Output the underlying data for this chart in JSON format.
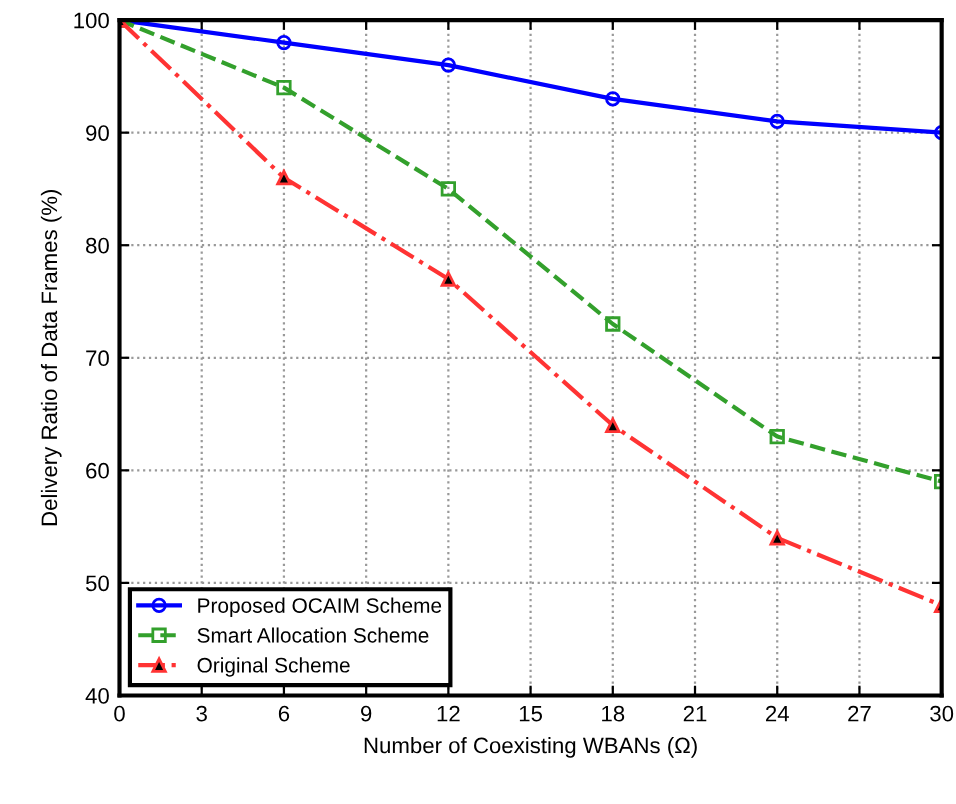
{
  "chart_data": {
    "type": "line",
    "xlabel": "Number of Coexisting WBANs (Ω)",
    "ylabel": "Delivery Ratio of Data Frames (%)",
    "x": [
      0,
      6,
      12,
      18,
      24,
      30
    ],
    "series": [
      {
        "name": "Proposed OCAIM Scheme",
        "color": "#0000ff",
        "marker": "circle",
        "line_style": "solid",
        "values": [
          100,
          98,
          96,
          93,
          91,
          90
        ]
      },
      {
        "name": "Smart Allocation Scheme",
        "color": "#33a02c",
        "marker": "square",
        "line_style": "dashed",
        "values": [
          100,
          94,
          85,
          73,
          63,
          59
        ]
      },
      {
        "name": "Original Scheme",
        "color": "#ff3333",
        "marker": "triangle",
        "line_style": "dashdot",
        "values": [
          100,
          86,
          77,
          64,
          54,
          48
        ]
      }
    ],
    "xlim": [
      0,
      30
    ],
    "xticks": [
      0,
      3,
      6,
      9,
      12,
      15,
      18,
      21,
      24,
      27,
      30
    ],
    "ylim": [
      40,
      100
    ],
    "yticks": [
      40,
      50,
      60,
      70,
      80,
      90,
      100
    ],
    "grid": true,
    "legend": "bottom left"
  }
}
